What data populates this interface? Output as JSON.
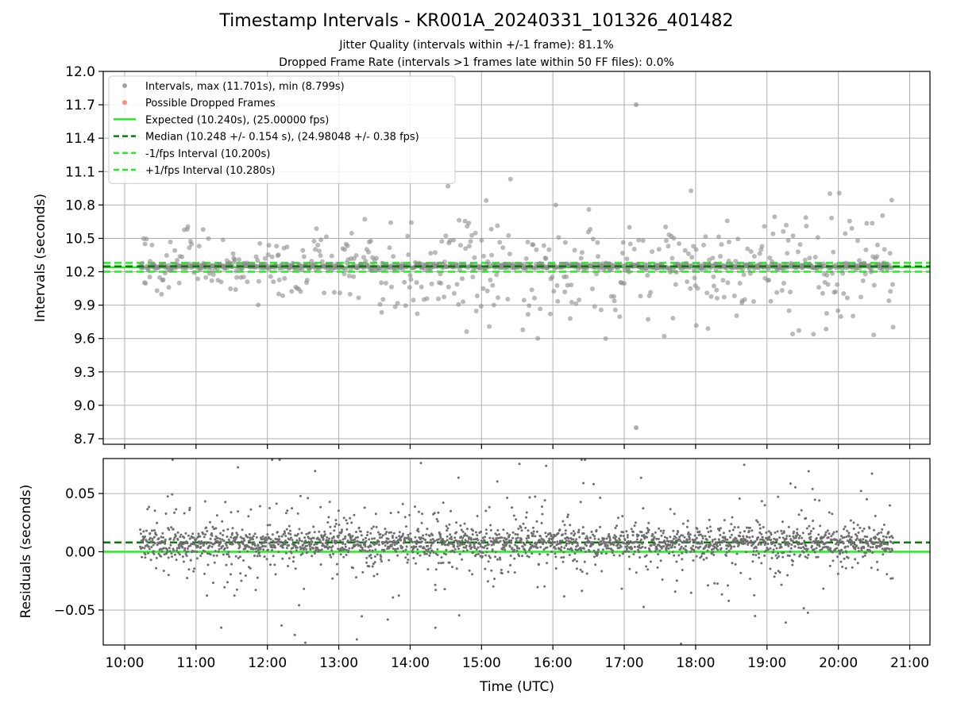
{
  "chart_data": [
    {
      "type": "scatter",
      "title": "Timestamp Intervals - KR001A_20240331_101326_401482",
      "subtitle_lines": [
        "Jitter Quality (intervals within +/-1 frame): 81.1%",
        "Dropped Frame Rate (intervals >1 frames late within 50 FF files): 0.0%"
      ],
      "xlabel": "",
      "ylabel": "Intervals (seconds)",
      "xlim": [
        "09:42",
        "21:17"
      ],
      "ylim": [
        8.65,
        12.0
      ],
      "yticks": [
        8.7,
        9.0,
        9.3,
        9.6,
        9.9,
        10.2,
        10.5,
        10.8,
        11.1,
        11.4,
        11.7,
        12.0
      ],
      "ytick_labels": [
        "8.7",
        "9.0",
        "9.3",
        "9.6",
        "9.9",
        "10.2",
        "10.5",
        "10.8",
        "11.1",
        "11.4",
        "11.7",
        "12.0"
      ],
      "xticks": [
        "10:00",
        "11:00",
        "12:00",
        "13:00",
        "14:00",
        "15:00",
        "16:00",
        "17:00",
        "18:00",
        "19:00",
        "20:00",
        "21:00"
      ],
      "grid": true,
      "legend_position": "top-left",
      "legend": [
        {
          "label": "Intervals, max (11.701s), min (8.799s)",
          "marker": "circle",
          "color": "#8c8c8c"
        },
        {
          "label": "Possible Dropped Frames",
          "marker": "circle",
          "color": "#ff6b6b"
        },
        {
          "label": "Expected (10.240s), (25.00000 fps)",
          "line": "solid",
          "color": "#22ee22"
        },
        {
          "label": "Median (10.248 +/- 0.154 s), (24.98048 +/- 0.38 fps)",
          "line": "dashed",
          "color": "#0a7a0a"
        },
        {
          "label": "-1/fps Interval (10.200s)",
          "line": "dashed",
          "color": "#22ee22"
        },
        {
          "label": "+1/fps Interval (10.280s)",
          "line": "dashed",
          "color": "#22ee22"
        }
      ],
      "reference_lines": {
        "expected": 10.24,
        "median": 10.248,
        "minus_1fps": 10.2,
        "plus_1fps": 10.28
      },
      "series_summary": {
        "time_start": "10:13",
        "time_end": "20:46",
        "max": 11.701,
        "min": 8.799,
        "max_time": "17:10",
        "min_time": "17:10"
      },
      "dropped_frames": []
    },
    {
      "type": "scatter",
      "title": "",
      "xlabel": "Time (UTC)",
      "ylabel": "Residuals (seconds)",
      "xlim": [
        "09:42",
        "21:17"
      ],
      "ylim": [
        -0.08,
        0.08
      ],
      "yticks": [
        -0.05,
        0.0,
        0.05
      ],
      "ytick_labels": [
        "−0.05",
        "0.00",
        "0.05"
      ],
      "xticks": [
        "10:00",
        "11:00",
        "12:00",
        "13:00",
        "14:00",
        "15:00",
        "16:00",
        "17:00",
        "18:00",
        "19:00",
        "20:00",
        "21:00"
      ],
      "grid": true,
      "reference_lines": {
        "zero": 0.0,
        "median_residual": 0.008
      },
      "series_summary": {
        "time_start": "10:13",
        "time_end": "20:46",
        "core_center": 0.008,
        "core_spread": 0.012
      }
    }
  ],
  "colors": {
    "point": "#8c8c8c",
    "residual_point": "#6e6e6e",
    "expected": "#22ee22",
    "median": "#0a7a0a",
    "grid": "#b0b0b0"
  }
}
